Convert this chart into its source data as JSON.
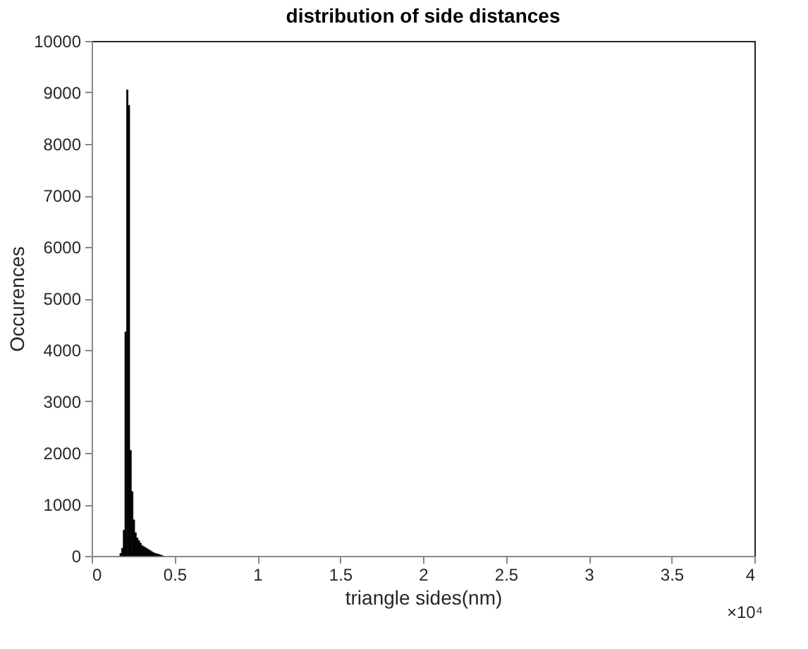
{
  "chart_data": {
    "type": "histogram",
    "title": "distribution of side distances",
    "xlabel": "triangle sides(nm)",
    "ylabel": "Occurences",
    "bins": [
      0.17,
      0.18,
      0.19,
      0.2,
      0.21,
      0.22,
      0.23,
      0.24,
      0.25,
      0.26,
      0.27,
      0.28,
      0.29,
      0.3,
      0.31,
      0.32,
      0.33,
      0.34,
      0.35,
      0.36,
      0.37,
      0.38,
      0.39,
      0.4,
      0.41,
      0.42,
      0.43
    ],
    "values": [
      50,
      150,
      500,
      4350,
      9050,
      8750,
      2050,
      1250,
      700,
      450,
      350,
      300,
      250,
      200,
      180,
      160,
      140,
      120,
      100,
      80,
      60,
      50,
      40,
      30,
      20,
      10
    ],
    "color": "#000000",
    "xlim": [
      0,
      4
    ],
    "xticks": [
      0,
      0.5,
      1,
      1.5,
      2,
      2.5,
      3,
      3.5,
      4
    ],
    "ylim": [
      0,
      10000
    ],
    "yticks": [
      0,
      1000,
      2000,
      3000,
      4000,
      5000,
      6000,
      7000,
      8000,
      9000,
      10000
    ],
    "annotations": [
      "×10⁴"
    ],
    "grid": false
  }
}
